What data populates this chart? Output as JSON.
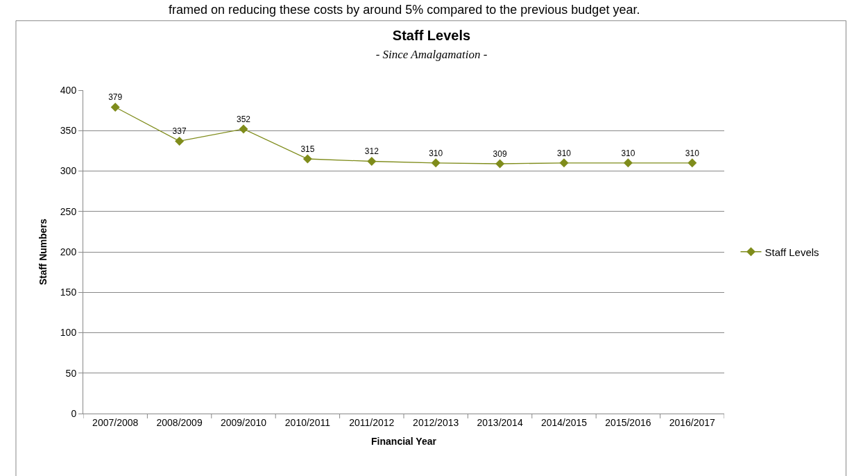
{
  "chart_data": {
    "type": "line",
    "title": "Staff Levels",
    "subtitle": "- Since Amalgamation -",
    "xlabel": "Financial Year",
    "ylabel": "Staff Numbers",
    "annotations": [
      "framed on reducing these costs by around 5% compared to the previous budget year."
    ],
    "categories": [
      "2007/2008",
      "2008/2009",
      "2009/2010",
      "2010/2011",
      "2011/2012",
      "2012/2013",
      "2013/2014",
      "2014/2015",
      "2015/2016",
      "2016/2017"
    ],
    "series": [
      {
        "name": "Staff Levels",
        "color": "#7f8c1b",
        "values": [
          379,
          337,
          352,
          315,
          312,
          310,
          309,
          310,
          310,
          310
        ]
      }
    ],
    "ylim": [
      0,
      400
    ],
    "yticks": [
      0,
      50,
      100,
      150,
      200,
      250,
      300,
      350,
      400
    ],
    "grid": "y",
    "legend": "right",
    "marker": "diamond",
    "line_style": "solid",
    "data_labels": true
  }
}
